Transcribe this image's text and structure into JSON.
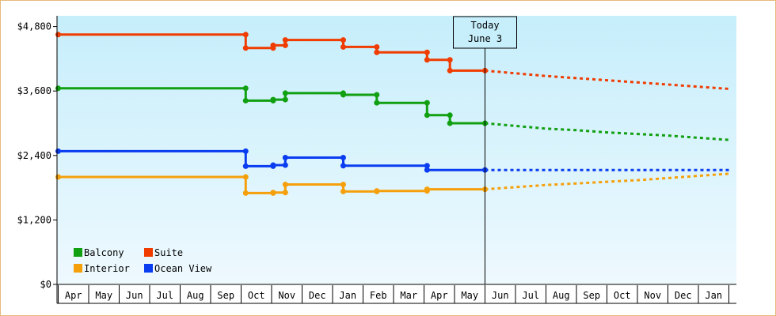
{
  "chart_data": {
    "type": "line",
    "y_ticks": [
      "$0",
      "$1,200",
      "$2,400",
      "$3,600",
      "$4,800"
    ],
    "ylim": [
      0,
      5000
    ],
    "months": [
      "Apr",
      "May",
      "Jun",
      "Jul",
      "Aug",
      "Sep",
      "Oct",
      "Nov",
      "Dec",
      "Jan",
      "Feb",
      "Mar",
      "Apr",
      "May",
      "Jun",
      "Jul",
      "Aug",
      "Sep",
      "Oct",
      "Nov",
      "Dec",
      "Jan"
    ],
    "annotation": {
      "line1": "Today",
      "line2": "June 3",
      "x": 14.0
    },
    "legend_placement": "bottom-left",
    "series": [
      {
        "name": "Balcony",
        "color": "#11a011",
        "points": [
          [
            0,
            3650
          ],
          [
            6.15,
            3650
          ],
          [
            6.15,
            3420
          ],
          [
            7.05,
            3420
          ],
          [
            7.05,
            3440
          ],
          [
            7.45,
            3440
          ],
          [
            7.45,
            3560
          ],
          [
            9.35,
            3560
          ],
          [
            9.35,
            3530
          ],
          [
            10.45,
            3530
          ],
          [
            10.45,
            3380
          ],
          [
            12.1,
            3380
          ],
          [
            12.1,
            3150
          ],
          [
            12.85,
            3150
          ],
          [
            12.85,
            3000
          ],
          [
            14.0,
            3000
          ]
        ],
        "markers": [
          [
            0,
            3650
          ],
          [
            6.15,
            3650
          ],
          [
            6.15,
            3420
          ],
          [
            7.05,
            3420
          ],
          [
            7.05,
            3440
          ],
          [
            7.45,
            3440
          ],
          [
            7.45,
            3560
          ],
          [
            9.35,
            3560
          ],
          [
            9.35,
            3530
          ],
          [
            10.45,
            3530
          ],
          [
            10.45,
            3380
          ],
          [
            12.1,
            3380
          ],
          [
            12.1,
            3150
          ],
          [
            12.85,
            3150
          ],
          [
            12.85,
            3000
          ],
          [
            14.0,
            3000
          ]
        ],
        "forecast": [
          [
            14.0,
            3000
          ],
          [
            15,
            2950
          ],
          [
            16,
            2900
          ],
          [
            17,
            2870
          ],
          [
            18,
            2830
          ],
          [
            19,
            2800
          ],
          [
            20,
            2770
          ],
          [
            21,
            2730
          ],
          [
            22,
            2690
          ]
        ]
      },
      {
        "name": "Suite",
        "color": "#f03c00",
        "points": [
          [
            0,
            4650
          ],
          [
            6.15,
            4650
          ],
          [
            6.15,
            4400
          ],
          [
            7.05,
            4400
          ],
          [
            7.05,
            4450
          ],
          [
            7.45,
            4450
          ],
          [
            7.45,
            4550
          ],
          [
            9.35,
            4550
          ],
          [
            9.35,
            4420
          ],
          [
            10.45,
            4420
          ],
          [
            10.45,
            4320
          ],
          [
            12.1,
            4320
          ],
          [
            12.1,
            4180
          ],
          [
            12.85,
            4180
          ],
          [
            12.85,
            3980
          ],
          [
            14.0,
            3980
          ]
        ],
        "markers": [
          [
            0,
            4650
          ],
          [
            6.15,
            4650
          ],
          [
            6.15,
            4400
          ],
          [
            7.05,
            4400
          ],
          [
            7.05,
            4450
          ],
          [
            7.45,
            4450
          ],
          [
            7.45,
            4550
          ],
          [
            9.35,
            4550
          ],
          [
            9.35,
            4420
          ],
          [
            10.45,
            4420
          ],
          [
            10.45,
            4320
          ],
          [
            12.1,
            4320
          ],
          [
            12.1,
            4180
          ],
          [
            12.85,
            4180
          ],
          [
            12.85,
            3980
          ],
          [
            14.0,
            3980
          ]
        ],
        "forecast": [
          [
            14.0,
            3980
          ],
          [
            15,
            3930
          ],
          [
            16,
            3880
          ],
          [
            17,
            3840
          ],
          [
            18,
            3800
          ],
          [
            19,
            3760
          ],
          [
            20,
            3720
          ],
          [
            21,
            3680
          ],
          [
            22,
            3640
          ]
        ]
      },
      {
        "name": "Interior",
        "color": "#f5a00a",
        "points": [
          [
            0,
            2000
          ],
          [
            6.15,
            2000
          ],
          [
            6.15,
            1700
          ],
          [
            7.05,
            1700
          ],
          [
            7.05,
            1710
          ],
          [
            7.45,
            1710
          ],
          [
            7.45,
            1860
          ],
          [
            9.35,
            1860
          ],
          [
            9.35,
            1730
          ],
          [
            10.45,
            1730
          ],
          [
            10.45,
            1740
          ],
          [
            12.1,
            1740
          ],
          [
            12.1,
            1770
          ],
          [
            14.0,
            1770
          ]
        ],
        "markers": [
          [
            0,
            2000
          ],
          [
            6.15,
            2000
          ],
          [
            6.15,
            1700
          ],
          [
            7.05,
            1700
          ],
          [
            7.05,
            1710
          ],
          [
            7.45,
            1710
          ],
          [
            7.45,
            1860
          ],
          [
            9.35,
            1860
          ],
          [
            9.35,
            1730
          ],
          [
            10.45,
            1730
          ],
          [
            10.45,
            1740
          ],
          [
            12.1,
            1740
          ],
          [
            12.1,
            1770
          ],
          [
            14.0,
            1770
          ]
        ],
        "forecast": [
          [
            14.0,
            1770
          ],
          [
            15,
            1810
          ],
          [
            16,
            1850
          ],
          [
            17,
            1880
          ],
          [
            18,
            1910
          ],
          [
            19,
            1940
          ],
          [
            20,
            1980
          ],
          [
            21,
            2020
          ],
          [
            22,
            2060
          ]
        ]
      },
      {
        "name": "Ocean View",
        "color": "#0a3cf0",
        "points": [
          [
            0,
            2480
          ],
          [
            6.15,
            2480
          ],
          [
            6.15,
            2200
          ],
          [
            7.05,
            2200
          ],
          [
            7.05,
            2220
          ],
          [
            7.45,
            2220
          ],
          [
            7.45,
            2360
          ],
          [
            9.35,
            2360
          ],
          [
            9.35,
            2210
          ],
          [
            12.1,
            2210
          ],
          [
            12.1,
            2130
          ],
          [
            14.0,
            2130
          ]
        ],
        "markers": [
          [
            0,
            2480
          ],
          [
            6.15,
            2480
          ],
          [
            6.15,
            2200
          ],
          [
            7.05,
            2200
          ],
          [
            7.05,
            2220
          ],
          [
            7.45,
            2220
          ],
          [
            7.45,
            2360
          ],
          [
            9.35,
            2360
          ],
          [
            9.35,
            2210
          ],
          [
            12.1,
            2210
          ],
          [
            12.1,
            2130
          ],
          [
            14.0,
            2130
          ]
        ],
        "forecast": [
          [
            14.0,
            2130
          ],
          [
            15,
            2130
          ],
          [
            16,
            2130
          ],
          [
            17,
            2130
          ],
          [
            18,
            2130
          ],
          [
            19,
            2130
          ],
          [
            20,
            2130
          ],
          [
            21,
            2130
          ],
          [
            22,
            2130
          ]
        ]
      }
    ]
  }
}
